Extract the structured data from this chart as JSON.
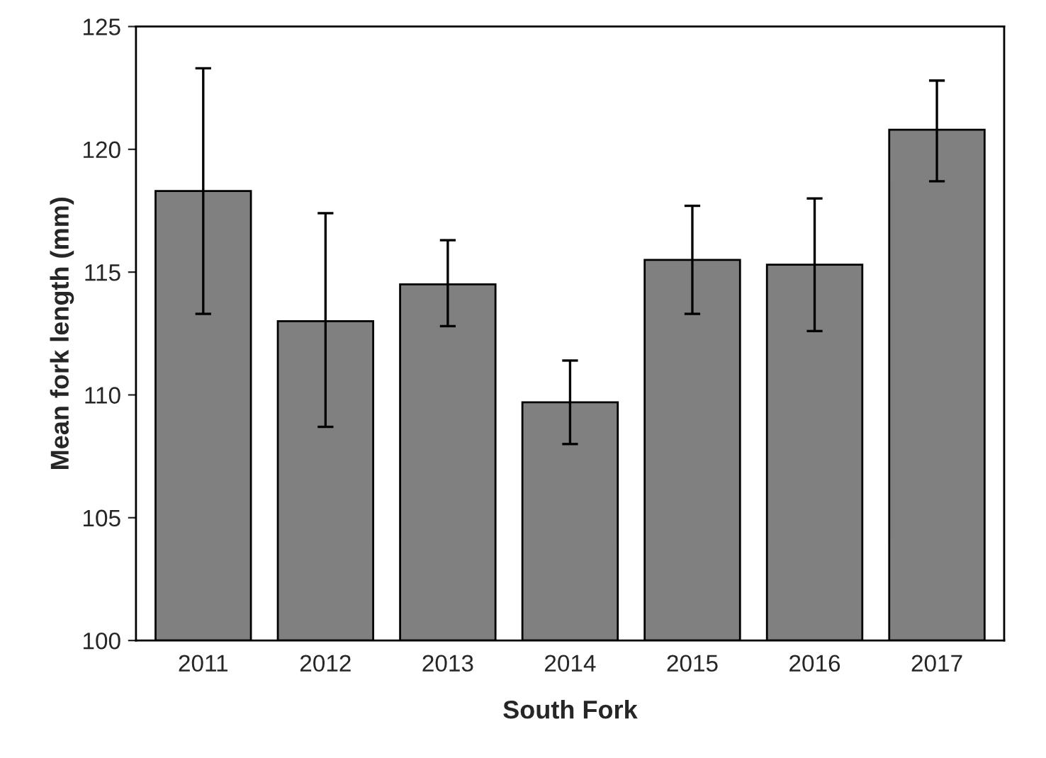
{
  "chart_data": {
    "type": "bar",
    "xlabel": "South Fork",
    "ylabel": "Mean fork length (mm)",
    "categories": [
      "2011",
      "2012",
      "2013",
      "2014",
      "2015",
      "2016",
      "2017"
    ],
    "values": [
      118.3,
      113.0,
      114.5,
      109.7,
      115.5,
      115.3,
      120.8
    ],
    "errors": [
      [
        113.3,
        123.3
      ],
      [
        108.7,
        117.4
      ],
      [
        112.8,
        116.3
      ],
      [
        108.0,
        111.4
      ],
      [
        113.3,
        117.7
      ],
      [
        112.6,
        118.0
      ],
      [
        118.7,
        122.8
      ]
    ],
    "color": "#808080",
    "ylim": [
      100,
      125
    ],
    "yticks": [
      100,
      105,
      110,
      115,
      120,
      125
    ],
    "grid": false
  }
}
